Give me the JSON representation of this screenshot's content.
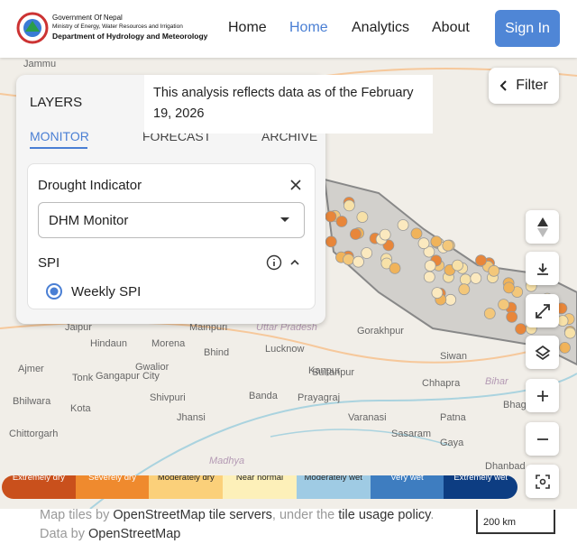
{
  "header": {
    "org_line1": "Government Of Nepal",
    "org_line2": "Ministry of Energy, Water Resources and Irrigation",
    "org_line3": "Department of Hydrology and Meteorology",
    "nav": [
      "Home",
      "Home",
      "Analytics",
      "About"
    ],
    "sign_in": "Sign In"
  },
  "layers_panel": {
    "title": "LAYERS",
    "tabs": [
      "MONITOR",
      "FORECAST",
      "ARCHIVE"
    ],
    "indicator_label": "Drought Indicator",
    "select_value": "DHM Monitor",
    "section": "SPI",
    "option": "Weekly SPI"
  },
  "notice": "This analysis reflects data as of the February 19, 2026",
  "filter": "Filter",
  "map_labels": [
    "Jammu",
    "Jaipur",
    "Hindaun",
    "Morena",
    "Bhind",
    "Mainpuri",
    "Uttar Pradesh",
    "Lucknow",
    "Gorakhpur",
    "Ajmer",
    "Tonk",
    "Gangapur City",
    "Shivpuri",
    "Gwalior",
    "Kanpur",
    "Sultanpur",
    "Siwan",
    "Kota",
    "Jhansi",
    "Banda",
    "Prayagraj",
    "Varanasi",
    "Patna",
    "Chhapra",
    "Bhilwara",
    "Chittorgarh",
    "Sasaram",
    "Gaya",
    "Bhagalpur",
    "Dhanbad",
    "Bihar",
    "Madhya"
  ],
  "legend": [
    "Extremely dry",
    "Severely dry",
    "Moderately dry",
    "Near normal",
    "Moderately wet",
    "Very wet",
    "Extremely wet"
  ],
  "attribution": {
    "parts": [
      "Map tiles by ",
      "OpenStreetMap tile servers",
      ", under the ",
      "tile usage policy",
      ". Data by ",
      "OpenStreetMap"
    ]
  },
  "scale": "200 km"
}
